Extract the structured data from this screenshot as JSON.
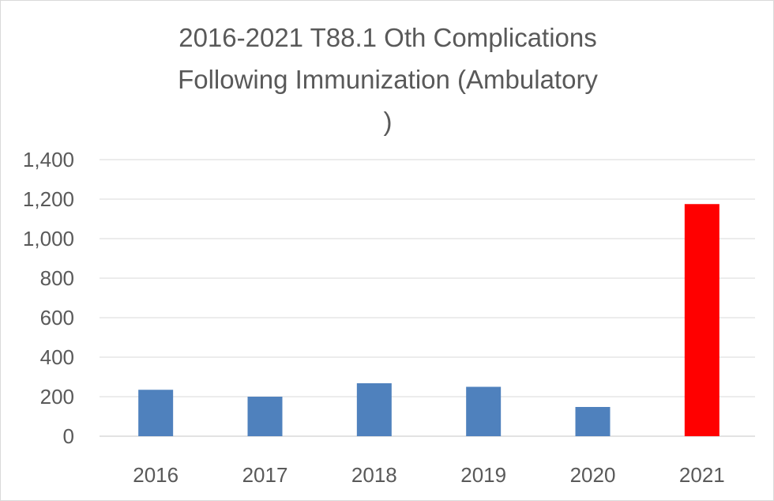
{
  "chart_data": {
    "type": "bar",
    "title": "2016-2021 T88.1 Oth Complications Following Immunization (Ambulatory )",
    "title_lines": [
      "2016-2021 T88.1 Oth Complications",
      "Following Immunization (Ambulatory",
      ")"
    ],
    "categories": [
      "2016",
      "2017",
      "2018",
      "2019",
      "2020",
      "2021"
    ],
    "values": [
      235,
      200,
      268,
      250,
      148,
      1175
    ],
    "colors": [
      "#4f81bd",
      "#4f81bd",
      "#4f81bd",
      "#4f81bd",
      "#4f81bd",
      "#ff0000"
    ],
    "ylim": [
      0,
      1400
    ],
    "yticks": [
      0,
      200,
      400,
      600,
      800,
      1000,
      1200,
      1400
    ],
    "ytick_labels": [
      "0",
      "200",
      "400",
      "600",
      "800",
      "1,000",
      "1,200",
      "1,400"
    ],
    "grid": true,
    "gridline_color": "#d9d9d9",
    "xlabel": "",
    "ylabel": ""
  }
}
